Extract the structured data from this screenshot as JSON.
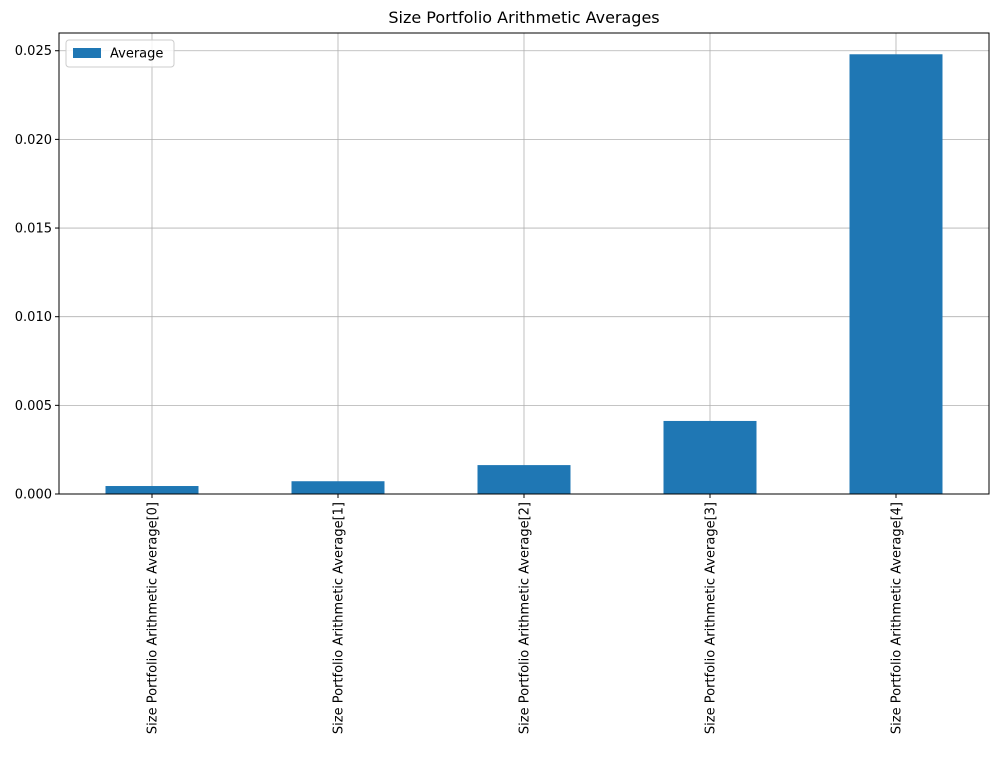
{
  "chart_data": {
    "type": "bar",
    "title": "Size Portfolio Arithmetic Averages",
    "xlabel": "",
    "ylabel": "",
    "categories": [
      "Size Portfolio Arithmetic Average[0]",
      "Size Portfolio Arithmetic Average[1]",
      "Size Portfolio Arithmetic Average[2]",
      "Size Portfolio Arithmetic Average[3]",
      "Size Portfolio Arithmetic Average[4]"
    ],
    "series": [
      {
        "name": "Average",
        "color": "#1f77b4",
        "values": [
          0.00045,
          0.00072,
          0.00163,
          0.00412,
          0.0248
        ]
      }
    ],
    "ylim": [
      0,
      0.026
    ],
    "yticks": [
      0.0,
      0.005,
      0.01,
      0.015,
      0.02,
      0.025
    ],
    "ytick_labels": [
      "0.000",
      "0.005",
      "0.010",
      "0.015",
      "0.020",
      "0.025"
    ],
    "grid": true,
    "legend_position": "top-left"
  }
}
